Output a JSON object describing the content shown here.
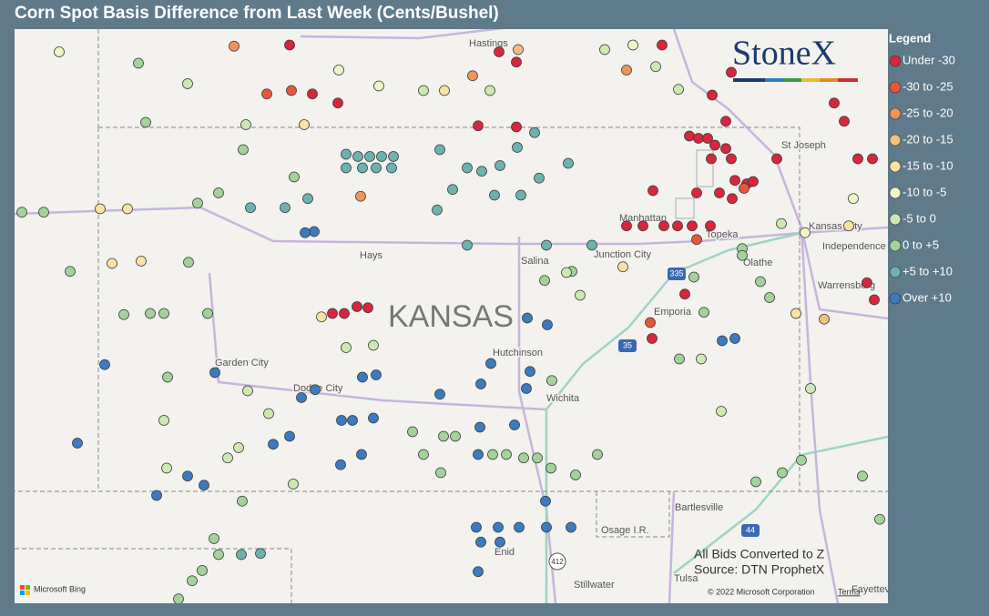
{
  "title": "Corn Spot Basis Difference from Last Week (Cents/Bushel)",
  "logo": "StoneX",
  "legend": {
    "title": "Legend",
    "items": [
      {
        "label": "Under -30",
        "color": "#d7263d"
      },
      {
        "label": "-30 to -25",
        "color": "#e8573c"
      },
      {
        "label": "-25 to -20",
        "color": "#f0955a"
      },
      {
        "label": "-20 to -15",
        "color": "#f4bf7f"
      },
      {
        "label": "-15 to -10",
        "color": "#f8e2a4"
      },
      {
        "label": "-10 to -5",
        "color": "#eff5c6"
      },
      {
        "label": "-5 to 0",
        "color": "#cfe8b2"
      },
      {
        "label": "0 to +5",
        "color": "#a3d39b"
      },
      {
        "label": "+5 to +10",
        "color": "#6db2ae"
      },
      {
        "label": "Over +10",
        "color": "#3b7bbf"
      }
    ]
  },
  "map": {
    "lon_range": [
      -103.0,
      -93.41
    ],
    "lat_range": [
      41.0,
      35.952
    ],
    "places": [
      "Hastings",
      "St Joseph",
      "Manhattan",
      "Topeka",
      "Kansas City",
      "Independence",
      "Junction City",
      "Salina",
      "Hays",
      "Olathe",
      "Warrensburg",
      "Emporia",
      "KANSAS",
      "Hutchinson",
      "Garden City",
      "Dodge City",
      "Wichita",
      "Bartlesville",
      "Osage I.R.",
      "Enid",
      "Stillwater",
      "Tulsa",
      "Fayetteville"
    ],
    "shields": [
      "335",
      "35",
      "44",
      "412"
    ],
    "attribution": "© 2022 Microsoft Corporation",
    "terms": "Terms",
    "provider": "Microsoft Bing"
  },
  "notes": [
    "All Bids Converted to Z",
    "Source: DTN ProphetX"
  ],
  "points": [
    [
      -95.59,
      40.06,
      0
    ],
    [
      -95.49,
      40.04,
      0
    ],
    [
      -95.39,
      40.04,
      0
    ],
    [
      -95.31,
      39.98,
      0
    ],
    [
      -95.19,
      39.95,
      0
    ],
    [
      -95.35,
      39.86,
      0
    ],
    [
      -95.13,
      39.86,
      0
    ],
    [
      -95.09,
      39.67,
      0
    ],
    [
      -94.96,
      39.64,
      0
    ],
    [
      -94.89,
      39.66,
      0
    ],
    [
      -94.99,
      39.6,
      1
    ],
    [
      -95.26,
      39.56,
      0
    ],
    [
      -95.51,
      39.56,
      0
    ],
    [
      -95.99,
      39.58,
      0
    ],
    [
      -95.12,
      39.51,
      0
    ],
    [
      -95.36,
      39.27,
      0
    ],
    [
      -95.56,
      39.27,
      0
    ],
    [
      -95.72,
      39.27,
      0
    ],
    [
      -95.87,
      39.27,
      0
    ],
    [
      -96.1,
      39.27,
      0
    ],
    [
      -96.28,
      39.27,
      0
    ],
    [
      -94.63,
      39.86,
      0
    ],
    [
      -94.0,
      40.35,
      0
    ],
    [
      -93.89,
      40.19,
      0
    ],
    [
      -93.74,
      39.86,
      0
    ],
    [
      -93.58,
      39.86,
      0
    ],
    [
      -93.64,
      38.77,
      0
    ],
    [
      -93.56,
      38.62,
      0
    ],
    [
      -95.19,
      40.19,
      0
    ],
    [
      -95.34,
      40.42,
      0
    ],
    [
      -95.13,
      40.62,
      0
    ],
    [
      -97.91,
      40.15,
      0
    ],
    [
      -97.49,
      40.14,
      0
    ],
    [
      -97.49,
      40.71,
      0
    ],
    [
      -95.51,
      39.15,
      1
    ],
    [
      -95.64,
      38.67,
      0
    ],
    [
      -96.0,
      38.28,
      0
    ],
    [
      -96.02,
      38.42,
      1
    ],
    [
      -99.51,
      38.5,
      0
    ],
    [
      -99.38,
      38.5,
      0
    ],
    [
      -99.24,
      38.56,
      0
    ],
    [
      -99.12,
      38.55,
      0
    ],
    [
      -99.73,
      40.43,
      0
    ],
    [
      -99.96,
      40.46,
      1
    ],
    [
      -99.45,
      40.35,
      0
    ],
    [
      -99.98,
      40.86,
      0
    ],
    [
      -100.23,
      40.43,
      1
    ],
    [
      -97.68,
      40.8,
      0
    ],
    [
      -95.89,
      40.86,
      0
    ],
    [
      -96.28,
      40.64,
      2
    ],
    [
      -100.59,
      40.85,
      2
    ],
    [
      -99.2,
      39.53,
      2
    ],
    [
      -97.97,
      40.59,
      2
    ],
    [
      -97.47,
      40.82,
      3
    ],
    [
      -99.63,
      38.47,
      4
    ],
    [
      -96.32,
      38.91,
      4
    ],
    [
      -94.11,
      38.45,
      3
    ],
    [
      -99.36,
      39.9,
      8
    ],
    [
      -99.23,
      39.88,
      8
    ],
    [
      -99.1,
      39.88,
      8
    ],
    [
      -98.97,
      39.88,
      8
    ],
    [
      -98.84,
      39.88,
      8
    ],
    [
      -99.36,
      39.78,
      8
    ],
    [
      -99.18,
      39.78,
      8
    ],
    [
      -99.03,
      39.78,
      8
    ],
    [
      -98.86,
      39.78,
      8
    ],
    [
      -98.33,
      39.94,
      8
    ],
    [
      -98.03,
      39.78,
      8
    ],
    [
      -97.87,
      39.75,
      8
    ],
    [
      -97.67,
      39.8,
      8
    ],
    [
      -97.48,
      39.96,
      8
    ],
    [
      -97.29,
      40.09,
      8
    ],
    [
      -97.24,
      39.69,
      8
    ],
    [
      -96.92,
      39.82,
      8
    ],
    [
      -98.19,
      39.59,
      8
    ],
    [
      -97.73,
      39.54,
      8
    ],
    [
      -97.44,
      39.54,
      8
    ],
    [
      -100.41,
      39.43,
      8
    ],
    [
      -100.03,
      39.43,
      8
    ],
    [
      -99.78,
      39.51,
      8
    ],
    [
      -98.36,
      39.41,
      8
    ],
    [
      -98.03,
      39.1,
      8
    ],
    [
      -97.16,
      39.1,
      8
    ],
    [
      -96.66,
      39.1,
      8
    ],
    [
      -100.51,
      36.38,
      8
    ],
    [
      -100.3,
      36.39,
      8
    ],
    [
      -99.71,
      39.22,
      9
    ],
    [
      -99.81,
      39.21,
      9
    ],
    [
      -99.85,
      37.76,
      9
    ],
    [
      -99.7,
      37.83,
      9
    ],
    [
      -99.41,
      37.56,
      9
    ],
    [
      -99.29,
      37.56,
      9
    ],
    [
      -99.06,
      37.58,
      9
    ],
    [
      -99.18,
      37.94,
      9
    ],
    [
      -99.03,
      37.96,
      9
    ],
    [
      -99.42,
      37.17,
      9
    ],
    [
      -99.19,
      37.26,
      9
    ],
    [
      -98.33,
      37.79,
      9
    ],
    [
      -97.89,
      37.5,
      9
    ],
    [
      -97.91,
      37.26,
      9
    ],
    [
      -97.51,
      37.52,
      9
    ],
    [
      -97.38,
      37.84,
      9
    ],
    [
      -97.34,
      37.99,
      9
    ],
    [
      -97.77,
      38.06,
      9
    ],
    [
      -97.88,
      37.88,
      9
    ],
    [
      -97.15,
      38.4,
      9
    ],
    [
      -97.37,
      38.46,
      9
    ],
    [
      -97.93,
      36.62,
      9
    ],
    [
      -97.69,
      36.62,
      9
    ],
    [
      -97.46,
      36.62,
      9
    ],
    [
      -97.16,
      36.62,
      9
    ],
    [
      -96.89,
      36.62,
      9
    ],
    [
      -97.88,
      36.49,
      9
    ],
    [
      -97.67,
      36.49,
      9
    ],
    [
      -97.91,
      36.23,
      9
    ],
    [
      -97.17,
      36.85,
      9
    ],
    [
      -102.01,
      38.05,
      9
    ],
    [
      -102.31,
      37.36,
      9
    ],
    [
      -101.44,
      36.9,
      9
    ],
    [
      -101.1,
      37.07,
      9
    ],
    [
      -100.92,
      36.99,
      9
    ],
    [
      -100.16,
      37.35,
      9
    ],
    [
      -99.98,
      37.42,
      9
    ],
    [
      -100.8,
      37.98,
      9
    ],
    [
      -95.09,
      38.28,
      9
    ],
    [
      -95.23,
      38.26,
      9
    ],
    [
      -101.51,
      38.5,
      7
    ],
    [
      -101.36,
      38.5,
      7
    ],
    [
      -101.8,
      38.49,
      7
    ],
    [
      -100.88,
      38.5,
      7
    ],
    [
      -101.32,
      37.94,
      7
    ],
    [
      -100.76,
      39.56,
      7
    ],
    [
      -100.99,
      39.47,
      7
    ],
    [
      -101.09,
      38.95,
      7
    ],
    [
      -102.68,
      39.39,
      7
    ],
    [
      -102.92,
      39.39,
      7
    ],
    [
      -102.39,
      38.87,
      7
    ],
    [
      -101.64,
      40.7,
      7
    ],
    [
      -101.56,
      40.18,
      7
    ],
    [
      -100.49,
      39.94,
      7
    ],
    [
      -99.93,
      39.7,
      7
    ],
    [
      -97.18,
      38.79,
      7
    ],
    [
      -96.88,
      38.87,
      7
    ],
    [
      -97.1,
      37.91,
      7
    ],
    [
      -96.6,
      37.26,
      7
    ],
    [
      -97.11,
      37.14,
      7
    ],
    [
      -96.84,
      37.08,
      7
    ],
    [
      -97.75,
      37.26,
      7
    ],
    [
      -97.6,
      37.26,
      7
    ],
    [
      -97.41,
      37.23,
      7
    ],
    [
      -97.26,
      37.23,
      7
    ],
    [
      -98.32,
      37.1,
      7
    ],
    [
      -98.63,
      37.46,
      7
    ],
    [
      -98.51,
      37.26,
      7
    ],
    [
      -98.29,
      37.42,
      7
    ],
    [
      -98.16,
      37.42,
      7
    ],
    [
      -94.71,
      38.64,
      7
    ],
    [
      -94.81,
      38.78,
      7
    ],
    [
      -95.01,
      39.07,
      7
    ],
    [
      -95.01,
      39.01,
      7
    ],
    [
      -95.54,
      38.82,
      7
    ],
    [
      -95.43,
      38.51,
      7
    ],
    [
      -94.86,
      37.02,
      7
    ],
    [
      -94.57,
      37.1,
      7
    ],
    [
      -94.36,
      37.21,
      7
    ],
    [
      -93.69,
      37.07,
      7
    ],
    [
      -93.5,
      36.69,
      7
    ],
    [
      -100.76,
      36.38,
      7
    ],
    [
      -100.94,
      36.24,
      7
    ],
    [
      -101.05,
      36.15,
      7
    ],
    [
      -101.2,
      35.99,
      7
    ],
    [
      -100.5,
      36.85,
      7
    ],
    [
      -100.81,
      36.52,
      7
    ],
    [
      -95.7,
      38.1,
      7
    ],
    [
      -102.51,
      40.8,
      5
    ],
    [
      -101.1,
      40.52,
      6
    ],
    [
      -99.44,
      40.64,
      5
    ],
    [
      -99.0,
      40.5,
      5
    ],
    [
      -98.51,
      40.46,
      6
    ],
    [
      -98.28,
      40.46,
      4
    ],
    [
      -97.78,
      40.46,
      6
    ],
    [
      -96.52,
      40.82,
      6
    ],
    [
      -96.21,
      40.86,
      5
    ],
    [
      -95.96,
      40.67,
      6
    ],
    [
      -95.71,
      40.47,
      6
    ],
    [
      -102.06,
      39.42,
      4
    ],
    [
      -101.76,
      39.42,
      4
    ],
    [
      -101.93,
      38.94,
      4
    ],
    [
      -101.61,
      38.96,
      4
    ],
    [
      -100.46,
      40.16,
      6
    ],
    [
      -99.82,
      40.16,
      4
    ],
    [
      -99.36,
      38.2,
      6
    ],
    [
      -99.06,
      38.22,
      6
    ],
    [
      -100.44,
      37.82,
      6
    ],
    [
      -100.21,
      37.62,
      6
    ],
    [
      -100.54,
      37.32,
      6
    ],
    [
      -100.66,
      37.23,
      6
    ],
    [
      -101.33,
      37.14,
      6
    ],
    [
      -99.94,
      37.0,
      6
    ],
    [
      -101.36,
      37.56,
      6
    ],
    [
      -96.79,
      38.66,
      6
    ],
    [
      -96.94,
      38.86,
      6
    ],
    [
      -94.42,
      38.5,
      4
    ],
    [
      -94.58,
      39.29,
      6
    ],
    [
      -94.32,
      39.21,
      5
    ],
    [
      -93.84,
      39.27,
      4
    ],
    [
      -93.79,
      39.51,
      5
    ],
    [
      -95.24,
      37.64,
      6
    ],
    [
      -94.26,
      37.84,
      6
    ],
    [
      -95.46,
      38.1,
      6
    ]
  ]
}
